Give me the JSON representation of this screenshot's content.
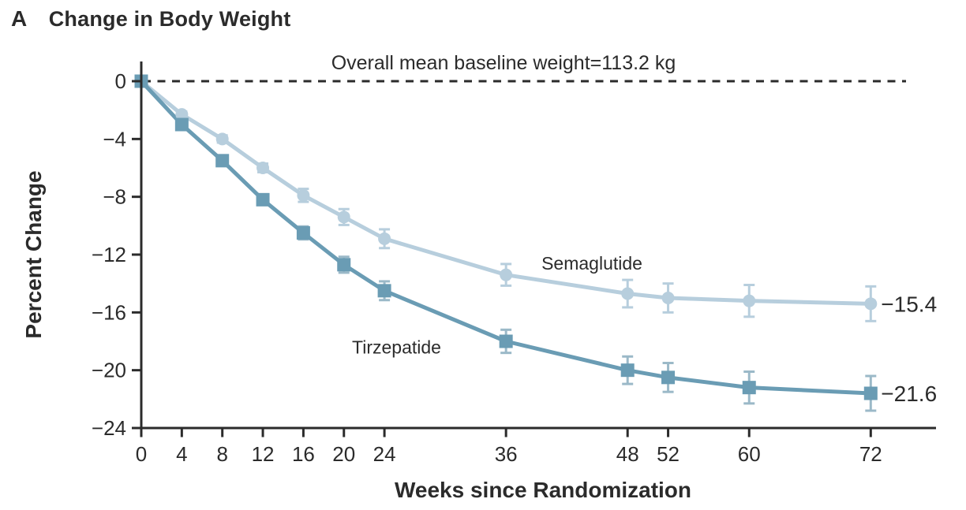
{
  "panel": {
    "letter": "A",
    "title": "Change in Body Weight"
  },
  "colors": {
    "text": "#2b2b2b",
    "axis": "#2b2b2b",
    "baseline_dash": "#2b2b2b",
    "semaglutide": "#b7cedd",
    "tirzepatide": "#6a9cb4",
    "tirzepatide_error": "#9bb9c8",
    "background": "#ffffff"
  },
  "chart_data": {
    "type": "line",
    "title": "Change in Body Weight",
    "xlabel": "Weeks since Randomization",
    "ylabel": "Percent Change",
    "baseline_annotation": "Overall mean baseline weight=113.2 kg",
    "x": [
      0,
      4,
      8,
      12,
      16,
      20,
      24,
      36,
      48,
      52,
      60,
      72
    ],
    "x_ticks": [
      0,
      4,
      8,
      12,
      16,
      20,
      24,
      36,
      48,
      52,
      60,
      72
    ],
    "y_ticks": [
      0,
      -4,
      -8,
      -12,
      -16,
      -20,
      -24
    ],
    "xlim": [
      0,
      72
    ],
    "ylim": [
      -24,
      0
    ],
    "grid": false,
    "legend_position": "inline-labels",
    "series": [
      {
        "name": "Semaglutide",
        "marker": "circle",
        "color": "#b7cedd",
        "error_color": "#b7cedd",
        "values": [
          0,
          -2.3,
          -4.0,
          -6.0,
          -7.9,
          -9.4,
          -10.9,
          -13.4,
          -14.7,
          -15.0,
          -15.2,
          -15.4
        ],
        "errors": [
          0,
          0.2,
          0.25,
          0.3,
          0.45,
          0.55,
          0.65,
          0.75,
          0.95,
          1.0,
          1.1,
          1.2
        ],
        "end_label": "−15.4",
        "label_pos": {
          "week": 39.5,
          "value": -12.6
        }
      },
      {
        "name": "Tirzepatide",
        "marker": "square",
        "color": "#6a9cb4",
        "error_color": "#9bb9c8",
        "values": [
          0,
          -3.0,
          -5.5,
          -8.2,
          -10.5,
          -12.7,
          -14.5,
          -18.0,
          -20.0,
          -20.5,
          -21.2,
          -21.6
        ],
        "errors": [
          0,
          0.2,
          0.25,
          0.35,
          0.45,
          0.55,
          0.65,
          0.8,
          0.95,
          1.0,
          1.1,
          1.2
        ],
        "end_label": "−21.6",
        "label_pos": {
          "week": 20.8,
          "value": -18.4
        }
      }
    ]
  }
}
